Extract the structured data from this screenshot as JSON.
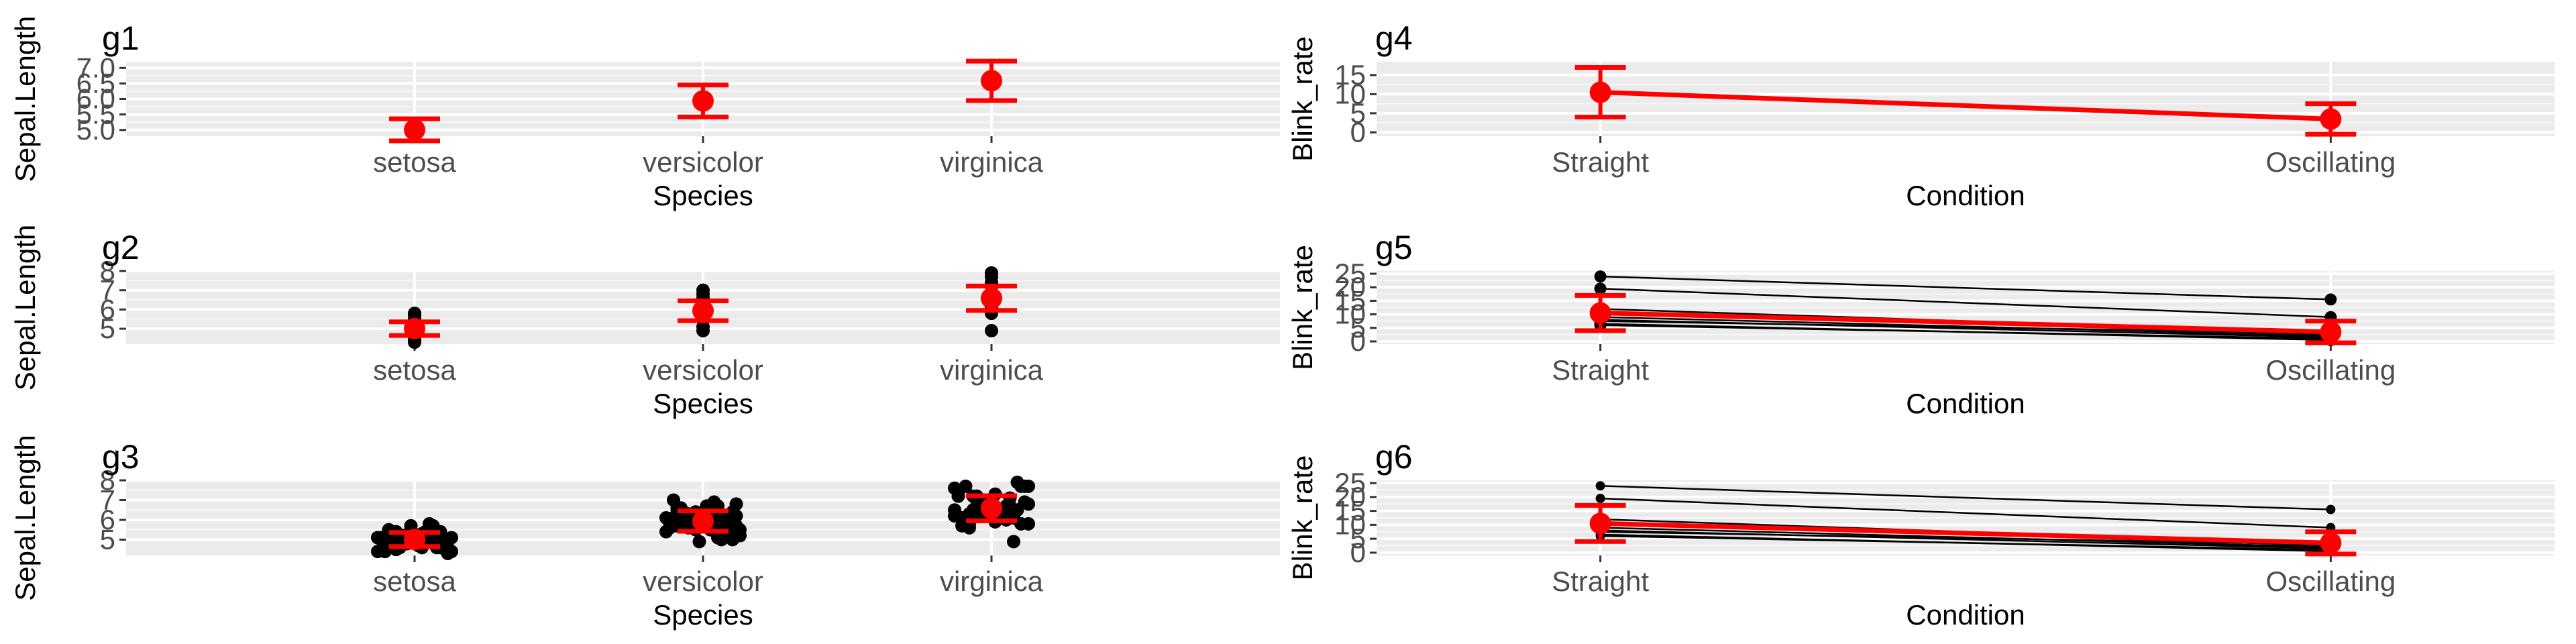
{
  "chart_data": [
    {
      "id": "g1",
      "type": "errorbar",
      "title": "g1",
      "xlabel": "Species",
      "ylabel": "Sepal.Length",
      "categories": [
        "setosa",
        "versicolor",
        "virginica"
      ],
      "ylim": [
        4.8,
        7.2
      ],
      "yticks": [
        5.0,
        5.5,
        6.0,
        6.5,
        7.0
      ],
      "ytick_labels": [
        "5.0",
        "5.5",
        "6.0",
        "6.5",
        "7.0"
      ],
      "mean": [
        5.006,
        5.936,
        6.588
      ],
      "lower": [
        4.65,
        5.42,
        5.95
      ],
      "upper": [
        5.36,
        6.45,
        7.22
      ],
      "raw_points": [],
      "color": "#ff0000",
      "panel_bg": "#ebebeb",
      "grid": true
    },
    {
      "id": "g2",
      "type": "errorbar",
      "title": "g2",
      "xlabel": "Species",
      "ylabel": "Sepal.Length",
      "categories": [
        "setosa",
        "versicolor",
        "virginica"
      ],
      "ylim": [
        4.2,
        8.0
      ],
      "yticks": [
        5,
        6,
        7,
        8
      ],
      "ytick_labels": [
        "5",
        "6",
        "7",
        "8"
      ],
      "mean": [
        5.006,
        5.936,
        6.588
      ],
      "lower": [
        4.65,
        5.42,
        5.95
      ],
      "upper": [
        5.36,
        6.45,
        7.22
      ],
      "raw_points": [
        {
          "cat": 0,
          "y": 4.3
        },
        {
          "cat": 0,
          "y": 4.4
        },
        {
          "cat": 0,
          "y": 4.6
        },
        {
          "cat": 0,
          "y": 4.8
        },
        {
          "cat": 0,
          "y": 5.0
        },
        {
          "cat": 0,
          "y": 5.2
        },
        {
          "cat": 0,
          "y": 5.4
        },
        {
          "cat": 0,
          "y": 5.5
        },
        {
          "cat": 0,
          "y": 5.7
        },
        {
          "cat": 0,
          "y": 5.8
        },
        {
          "cat": 1,
          "y": 4.9
        },
        {
          "cat": 1,
          "y": 5.1
        },
        {
          "cat": 1,
          "y": 5.5
        },
        {
          "cat": 1,
          "y": 5.8
        },
        {
          "cat": 1,
          "y": 6.0
        },
        {
          "cat": 1,
          "y": 6.3
        },
        {
          "cat": 1,
          "y": 6.6
        },
        {
          "cat": 1,
          "y": 6.8
        },
        {
          "cat": 1,
          "y": 7.0
        },
        {
          "cat": 2,
          "y": 4.9
        },
        {
          "cat": 2,
          "y": 5.8
        },
        {
          "cat": 2,
          "y": 6.1
        },
        {
          "cat": 2,
          "y": 6.4
        },
        {
          "cat": 2,
          "y": 6.7
        },
        {
          "cat": 2,
          "y": 7.2
        },
        {
          "cat": 2,
          "y": 7.4
        },
        {
          "cat": 2,
          "y": 7.7
        },
        {
          "cat": 2,
          "y": 7.9
        }
      ],
      "color": "#ff0000",
      "panel_bg": "#ebebeb",
      "grid": true
    },
    {
      "id": "g3",
      "type": "errorbar",
      "title": "g3",
      "xlabel": "Species",
      "ylabel": "Sepal.Length",
      "categories": [
        "setosa",
        "versicolor",
        "virginica"
      ],
      "ylim": [
        4.2,
        8.0
      ],
      "yticks": [
        5,
        6,
        7,
        8
      ],
      "ytick_labels": [
        "5",
        "6",
        "7",
        "8"
      ],
      "mean": [
        5.006,
        5.936,
        6.588
      ],
      "lower": [
        4.65,
        5.42,
        5.95
      ],
      "upper": [
        5.36,
        6.45,
        7.22
      ],
      "raw_points": [
        {
          "cat": 0,
          "y": 5.1
        },
        {
          "cat": 0,
          "y": 4.9
        },
        {
          "cat": 0,
          "y": 4.7
        },
        {
          "cat": 0,
          "y": 4.6
        },
        {
          "cat": 0,
          "y": 5.0
        },
        {
          "cat": 0,
          "y": 5.4
        },
        {
          "cat": 0,
          "y": 4.6
        },
        {
          "cat": 0,
          "y": 5.0
        },
        {
          "cat": 0,
          "y": 4.4
        },
        {
          "cat": 0,
          "y": 4.9
        },
        {
          "cat": 0,
          "y": 5.4
        },
        {
          "cat": 0,
          "y": 4.8
        },
        {
          "cat": 0,
          "y": 4.8
        },
        {
          "cat": 0,
          "y": 4.3
        },
        {
          "cat": 0,
          "y": 5.8
        },
        {
          "cat": 0,
          "y": 5.7
        },
        {
          "cat": 0,
          "y": 5.4
        },
        {
          "cat": 0,
          "y": 5.1
        },
        {
          "cat": 0,
          "y": 5.7
        },
        {
          "cat": 0,
          "y": 5.1
        },
        {
          "cat": 0,
          "y": 5.4
        },
        {
          "cat": 0,
          "y": 5.1
        },
        {
          "cat": 0,
          "y": 4.6
        },
        {
          "cat": 0,
          "y": 5.1
        },
        {
          "cat": 0,
          "y": 4.8
        },
        {
          "cat": 0,
          "y": 5.0
        },
        {
          "cat": 0,
          "y": 5.0
        },
        {
          "cat": 0,
          "y": 5.2
        },
        {
          "cat": 0,
          "y": 5.2
        },
        {
          "cat": 0,
          "y": 4.7
        },
        {
          "cat": 0,
          "y": 4.8
        },
        {
          "cat": 0,
          "y": 5.4
        },
        {
          "cat": 0,
          "y": 5.2
        },
        {
          "cat": 0,
          "y": 5.5
        },
        {
          "cat": 0,
          "y": 4.9
        },
        {
          "cat": 0,
          "y": 5.0
        },
        {
          "cat": 0,
          "y": 5.5
        },
        {
          "cat": 0,
          "y": 4.9
        },
        {
          "cat": 0,
          "y": 4.4
        },
        {
          "cat": 0,
          "y": 5.1
        },
        {
          "cat": 0,
          "y": 5.0
        },
        {
          "cat": 0,
          "y": 4.5
        },
        {
          "cat": 0,
          "y": 4.4
        },
        {
          "cat": 0,
          "y": 5.0
        },
        {
          "cat": 0,
          "y": 5.1
        },
        {
          "cat": 0,
          "y": 4.8
        },
        {
          "cat": 0,
          "y": 5.1
        },
        {
          "cat": 0,
          "y": 4.6
        },
        {
          "cat": 0,
          "y": 5.3
        },
        {
          "cat": 0,
          "y": 5.0
        },
        {
          "cat": 1,
          "y": 7.0
        },
        {
          "cat": 1,
          "y": 6.4
        },
        {
          "cat": 1,
          "y": 6.9
        },
        {
          "cat": 1,
          "y": 5.5
        },
        {
          "cat": 1,
          "y": 6.5
        },
        {
          "cat": 1,
          "y": 5.7
        },
        {
          "cat": 1,
          "y": 6.3
        },
        {
          "cat": 1,
          "y": 4.9
        },
        {
          "cat": 1,
          "y": 6.6
        },
        {
          "cat": 1,
          "y": 5.2
        },
        {
          "cat": 1,
          "y": 5.0
        },
        {
          "cat": 1,
          "y": 5.9
        },
        {
          "cat": 1,
          "y": 6.0
        },
        {
          "cat": 1,
          "y": 6.1
        },
        {
          "cat": 1,
          "y": 5.6
        },
        {
          "cat": 1,
          "y": 6.7
        },
        {
          "cat": 1,
          "y": 5.6
        },
        {
          "cat": 1,
          "y": 5.8
        },
        {
          "cat": 1,
          "y": 6.2
        },
        {
          "cat": 1,
          "y": 5.6
        },
        {
          "cat": 1,
          "y": 5.9
        },
        {
          "cat": 1,
          "y": 6.1
        },
        {
          "cat": 1,
          "y": 6.3
        },
        {
          "cat": 1,
          "y": 6.1
        },
        {
          "cat": 1,
          "y": 6.4
        },
        {
          "cat": 1,
          "y": 6.6
        },
        {
          "cat": 1,
          "y": 6.8
        },
        {
          "cat": 1,
          "y": 6.7
        },
        {
          "cat": 1,
          "y": 6.0
        },
        {
          "cat": 1,
          "y": 5.7
        },
        {
          "cat": 1,
          "y": 5.5
        },
        {
          "cat": 1,
          "y": 5.5
        },
        {
          "cat": 1,
          "y": 5.8
        },
        {
          "cat": 1,
          "y": 6.0
        },
        {
          "cat": 1,
          "y": 5.4
        },
        {
          "cat": 1,
          "y": 6.0
        },
        {
          "cat": 1,
          "y": 6.7
        },
        {
          "cat": 1,
          "y": 6.3
        },
        {
          "cat": 1,
          "y": 5.6
        },
        {
          "cat": 1,
          "y": 5.5
        },
        {
          "cat": 1,
          "y": 5.5
        },
        {
          "cat": 1,
          "y": 6.1
        },
        {
          "cat": 1,
          "y": 5.8
        },
        {
          "cat": 1,
          "y": 5.0
        },
        {
          "cat": 1,
          "y": 5.6
        },
        {
          "cat": 1,
          "y": 5.7
        },
        {
          "cat": 1,
          "y": 5.7
        },
        {
          "cat": 1,
          "y": 6.2
        },
        {
          "cat": 1,
          "y": 5.1
        },
        {
          "cat": 1,
          "y": 5.7
        },
        {
          "cat": 2,
          "y": 6.3
        },
        {
          "cat": 2,
          "y": 5.8
        },
        {
          "cat": 2,
          "y": 7.1
        },
        {
          "cat": 2,
          "y": 6.3
        },
        {
          "cat": 2,
          "y": 6.5
        },
        {
          "cat": 2,
          "y": 7.6
        },
        {
          "cat": 2,
          "y": 4.9
        },
        {
          "cat": 2,
          "y": 7.3
        },
        {
          "cat": 2,
          "y": 6.7
        },
        {
          "cat": 2,
          "y": 7.2
        },
        {
          "cat": 2,
          "y": 6.5
        },
        {
          "cat": 2,
          "y": 6.4
        },
        {
          "cat": 2,
          "y": 6.8
        },
        {
          "cat": 2,
          "y": 5.7
        },
        {
          "cat": 2,
          "y": 5.8
        },
        {
          "cat": 2,
          "y": 6.4
        },
        {
          "cat": 2,
          "y": 6.5
        },
        {
          "cat": 2,
          "y": 7.7
        },
        {
          "cat": 2,
          "y": 7.7
        },
        {
          "cat": 2,
          "y": 6.0
        },
        {
          "cat": 2,
          "y": 6.9
        },
        {
          "cat": 2,
          "y": 5.6
        },
        {
          "cat": 2,
          "y": 7.7
        },
        {
          "cat": 2,
          "y": 6.3
        },
        {
          "cat": 2,
          "y": 6.7
        },
        {
          "cat": 2,
          "y": 7.2
        },
        {
          "cat": 2,
          "y": 6.2
        },
        {
          "cat": 2,
          "y": 6.1
        },
        {
          "cat": 2,
          "y": 6.4
        },
        {
          "cat": 2,
          "y": 7.2
        },
        {
          "cat": 2,
          "y": 7.4
        },
        {
          "cat": 2,
          "y": 7.9
        },
        {
          "cat": 2,
          "y": 6.4
        },
        {
          "cat": 2,
          "y": 6.3
        },
        {
          "cat": 2,
          "y": 6.1
        },
        {
          "cat": 2,
          "y": 7.7
        },
        {
          "cat": 2,
          "y": 6.3
        },
        {
          "cat": 2,
          "y": 6.4
        },
        {
          "cat": 2,
          "y": 6.0
        },
        {
          "cat": 2,
          "y": 6.9
        },
        {
          "cat": 2,
          "y": 6.7
        },
        {
          "cat": 2,
          "y": 6.9
        },
        {
          "cat": 2,
          "y": 5.8
        },
        {
          "cat": 2,
          "y": 6.8
        },
        {
          "cat": 2,
          "y": 6.7
        },
        {
          "cat": 2,
          "y": 6.7
        },
        {
          "cat": 2,
          "y": 6.3
        },
        {
          "cat": 2,
          "y": 6.5
        },
        {
          "cat": 2,
          "y": 6.2
        },
        {
          "cat": 2,
          "y": 5.9
        }
      ],
      "color": "#ff0000",
      "panel_bg": "#ebebeb",
      "grid": true
    },
    {
      "id": "g4",
      "type": "errorbar-line",
      "title": "g4",
      "xlabel": "Condition",
      "ylabel": "Blink_rate",
      "categories": [
        "Straight",
        "Oscillating"
      ],
      "ylim": [
        -1.0,
        18.5
      ],
      "yticks": [
        0,
        5,
        10,
        15
      ],
      "ytick_labels": [
        "0",
        "5",
        "10",
        "15"
      ],
      "mean": [
        10.5,
        3.5
      ],
      "lower": [
        4.0,
        -0.5
      ],
      "upper": [
        17.0,
        7.5
      ],
      "subject_lines": [],
      "color": "#ff0000",
      "panel_bg": "#ebebeb",
      "grid": true
    },
    {
      "id": "g5",
      "type": "errorbar-line",
      "title": "g5",
      "xlabel": "Condition",
      "ylabel": "Blink_rate",
      "categories": [
        "Straight",
        "Oscillating"
      ],
      "ylim": [
        -1.0,
        26.0
      ],
      "yticks": [
        0,
        5,
        10,
        15,
        20,
        25
      ],
      "ytick_labels": [
        "0",
        "5",
        "10",
        "15",
        "20",
        "25"
      ],
      "mean": [
        10.5,
        3.5
      ],
      "lower": [
        4.0,
        -0.5
      ],
      "upper": [
        17.0,
        7.5
      ],
      "subject_lines": [
        [
          24.0,
          15.5
        ],
        [
          19.5,
          9.0
        ],
        [
          12.0,
          3.0
        ],
        [
          11.0,
          2.5
        ],
        [
          10.5,
          4.0
        ],
        [
          9.0,
          2.0
        ],
        [
          8.0,
          1.5
        ],
        [
          7.5,
          3.0
        ],
        [
          6.5,
          0.5
        ],
        [
          6.0,
          1.0
        ]
      ],
      "color": "#ff0000",
      "panel_bg": "#ebebeb",
      "grid": true
    },
    {
      "id": "g6",
      "type": "errorbar-line",
      "title": "g6",
      "xlabel": "Condition",
      "ylabel": "Blink_rate",
      "categories": [
        "Straight",
        "Oscillating"
      ],
      "ylim": [
        -1.0,
        26.0
      ],
      "yticks": [
        0,
        5,
        10,
        15,
        20,
        25
      ],
      "ytick_labels": [
        "0",
        "5",
        "10",
        "15",
        "20",
        "25"
      ],
      "mean": [
        10.5,
        3.5
      ],
      "lower": [
        4.0,
        -0.5
      ],
      "upper": [
        17.0,
        7.5
      ],
      "subject_lines": [
        [
          24.0,
          15.5
        ],
        [
          19.5,
          9.0
        ],
        [
          12.0,
          3.0
        ],
        [
          11.0,
          2.5
        ],
        [
          10.5,
          4.0
        ],
        [
          9.0,
          2.0
        ],
        [
          8.0,
          1.5
        ],
        [
          7.5,
          3.0
        ],
        [
          6.5,
          0.5
        ],
        [
          6.0,
          1.0
        ]
      ],
      "color": "#ff0000",
      "panel_bg": "#ebebeb",
      "grid": true
    }
  ]
}
